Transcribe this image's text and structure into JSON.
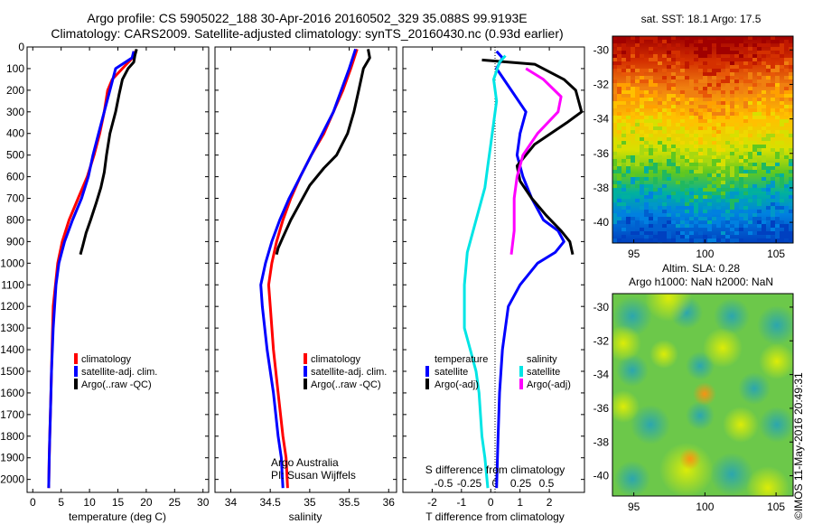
{
  "header": {
    "line1": "Argo profile: CS 5905022_188 30-Apr-2016 20160502_329 35.088S 99.9193E",
    "line2": "Climatology: CARS2009. Satellite-adjusted climatology: synTS_20160430.nc (0.93d earlier)"
  },
  "side_label": "©IMOS 11-May-2016 20:49:31",
  "colors": {
    "climatology": "#ff0000",
    "satellite": "#0000ff",
    "argo": "#000000",
    "sat_S": "#00e5e5",
    "argo_S": "#ff00ff"
  },
  "chart_data": [
    {
      "type": "line",
      "panel": "temperature",
      "xlabel": "temperature (deg C)",
      "xlim": [
        -1,
        31
      ],
      "xticks": [
        0,
        5,
        10,
        15,
        20,
        25,
        30
      ],
      "ylim": [
        2060,
        0
      ],
      "yticks": [
        0,
        100,
        200,
        300,
        400,
        500,
        600,
        700,
        800,
        900,
        1000,
        1100,
        1200,
        1300,
        1400,
        1500,
        1600,
        1700,
        1800,
        1900,
        2000
      ],
      "legend": [
        "climatology",
        "satellite-adj. clim.",
        "Argo(..raw -QC)"
      ],
      "series": [
        {
          "name": "climatology",
          "color": "#ff0000",
          "x": [
            18.0,
            17.6,
            15.8,
            14.0,
            13.2,
            12.6,
            11.8,
            10.8,
            9.6,
            8.0,
            6.4,
            5.2,
            4.4,
            4.0,
            3.6,
            3.4,
            3.2,
            3.0,
            2.9,
            2.8
          ],
          "y": [
            20,
            50,
            100,
            150,
            200,
            300,
            400,
            500,
            600,
            700,
            800,
            900,
            1000,
            1100,
            1200,
            1400,
            1600,
            1800,
            1900,
            2040
          ]
        },
        {
          "name": "satellite-adj. clim.",
          "color": "#0000ff",
          "x": [
            17.8,
            17.5,
            14.6,
            13.6,
            12.6,
            11.6,
            10.6,
            9.8,
            8.6,
            7.0,
            5.6,
            4.6,
            4.1,
            3.6,
            3.3,
            3.1,
            3.0,
            2.9,
            2.8
          ],
          "y": [
            20,
            50,
            100,
            200,
            300,
            400,
            500,
            600,
            700,
            800,
            900,
            1000,
            1100,
            1300,
            1500,
            1700,
            1800,
            1900,
            2040
          ]
        },
        {
          "name": "Argo(..raw -QC)",
          "color": "#000000",
          "x": [
            18.3,
            18.0,
            17.8,
            16.8,
            15.8,
            15.2,
            14.6,
            13.6,
            13.0,
            12.6,
            12.0,
            11.2,
            10.2,
            9.4,
            8.8,
            8.4
          ],
          "y": [
            10,
            40,
            70,
            100,
            150,
            220,
            300,
            400,
            500,
            580,
            650,
            720,
            800,
            860,
            920,
            960
          ]
        }
      ]
    },
    {
      "type": "line",
      "panel": "salinity",
      "xlabel": "salinity",
      "xlim": [
        33.8,
        36.1
      ],
      "xticks": [
        34,
        34.5,
        35,
        35.5,
        36
      ],
      "ylim": [
        2060,
        0
      ],
      "legend": [
        "climatology",
        "satellite-adj. clim.",
        "Argo(..raw -QC)"
      ],
      "annotation": [
        "Argo Australia",
        "PI: Susan Wijffels"
      ],
      "series": [
        {
          "name": "climatology",
          "color": "#ff0000",
          "x": [
            35.6,
            35.52,
            35.42,
            35.3,
            35.18,
            35.02,
            34.88,
            34.76,
            34.66,
            34.58,
            34.52,
            34.48,
            34.5,
            34.54,
            34.6,
            34.66,
            34.7,
            34.72
          ],
          "y": [
            10,
            100,
            200,
            300,
            400,
            500,
            600,
            700,
            800,
            900,
            1000,
            1100,
            1200,
            1400,
            1600,
            1800,
            1900,
            2040
          ]
        },
        {
          "name": "satellite-adj. clim.",
          "color": "#0000ff",
          "x": [
            35.58,
            35.5,
            35.4,
            35.3,
            35.16,
            35.02,
            34.88,
            34.74,
            34.62,
            34.52,
            34.44,
            34.38,
            34.4,
            34.46,
            34.54,
            34.6,
            34.64,
            34.66
          ],
          "y": [
            10,
            100,
            200,
            300,
            400,
            500,
            600,
            700,
            800,
            900,
            1000,
            1100,
            1200,
            1400,
            1600,
            1800,
            1900,
            2040
          ]
        },
        {
          "name": "Argo(..raw -QC)",
          "color": "#000000",
          "x": [
            35.74,
            35.76,
            35.68,
            35.62,
            35.56,
            35.48,
            35.34,
            35.18,
            35.0,
            34.88,
            34.76,
            34.66,
            34.6,
            34.58
          ],
          "y": [
            10,
            50,
            100,
            200,
            300,
            400,
            500,
            560,
            640,
            720,
            800,
            880,
            930,
            960
          ]
        }
      ]
    },
    {
      "type": "line",
      "panel": "difference",
      "xlabel": "T difference from climatology",
      "xlim": [
        -3,
        3.2
      ],
      "xticks": [
        -2,
        -1,
        0,
        1,
        2
      ],
      "secondary_label": "S difference from climatology",
      "secondary_ticks": [
        -0.5,
        -0.25,
        0,
        0.25,
        0.5
      ],
      "zero_line": true,
      "legend_title_temperature": "temperature",
      "legend_title_salinity": "salinity",
      "legend_items": [
        "satellite",
        "Argo(-adj)",
        "satellite",
        "Argo(-adj)"
      ],
      "series": [
        {
          "name": "satellite (T)",
          "color": "#0000ff",
          "x": [
            0.2,
            0.4,
            0.2,
            0.7,
            1.2,
            1.0,
            0.9,
            1.1,
            1.4,
            1.8,
            2.3,
            2.5,
            2.2,
            1.6,
            1.0,
            0.6,
            0.4,
            0.3,
            0.25,
            0.2
          ],
          "y": [
            20,
            50,
            100,
            200,
            300,
            400,
            500,
            600,
            700,
            800,
            850,
            900,
            950,
            1000,
            1100,
            1200,
            1400,
            1600,
            1800,
            2040
          ]
        },
        {
          "name": "Argo(-adj) (T)",
          "color": "#000000",
          "x": [
            -0.3,
            1.5,
            2.5,
            2.9,
            3.1,
            2.6,
            1.5,
            0.9,
            1.0,
            1.4,
            1.9,
            2.4,
            2.7,
            2.8
          ],
          "y": [
            60,
            80,
            150,
            200,
            300,
            350,
            450,
            550,
            620,
            700,
            780,
            850,
            900,
            960
          ]
        },
        {
          "name": "satellite (S)",
          "color": "#00e5e5",
          "x": [
            0.5,
            0.3,
            0.1,
            0.2,
            0.1,
            0.0,
            -0.1,
            -0.2,
            -0.4,
            -0.6,
            -0.8,
            -0.9,
            -0.9,
            -0.7,
            -0.5,
            -0.4,
            -0.3,
            -0.2,
            -0.1
          ],
          "y": [
            40,
            70,
            150,
            250,
            350,
            450,
            550,
            650,
            750,
            850,
            950,
            1100,
            1300,
            1400,
            1500,
            1600,
            1800,
            1900,
            2040
          ]
        },
        {
          "name": "Argo(-adj) (S)",
          "color": "#ff00ff",
          "x": [
            1.2,
            1.8,
            2.4,
            2.3,
            1.6,
            1.1,
            0.9,
            0.8,
            0.8,
            0.7
          ],
          "y": [
            100,
            150,
            230,
            300,
            400,
            500,
            600,
            700,
            850,
            960
          ]
        }
      ]
    },
    {
      "type": "heatmap",
      "panel": "sat_sst",
      "title": "sat. SST: 18.1 Argo: 17.5",
      "xlim": [
        93.5,
        106.2
      ],
      "xticks": [
        95,
        100,
        105
      ],
      "ylim": [
        -41.2,
        -29.2
      ],
      "yticks": [
        -30,
        -32,
        -34,
        -36,
        -38,
        -40
      ]
    },
    {
      "type": "heatmap",
      "panel": "sla",
      "title": "Altim. SLA: 0.28",
      "subtitle": "Argo h1000: NaN h2000: NaN",
      "xlim": [
        93.5,
        106.2
      ],
      "xticks": [
        95,
        100,
        105
      ],
      "ylim": [
        -41.2,
        -29.2
      ],
      "yticks": [
        -30,
        -32,
        -34,
        -36,
        -38,
        -40
      ]
    }
  ]
}
